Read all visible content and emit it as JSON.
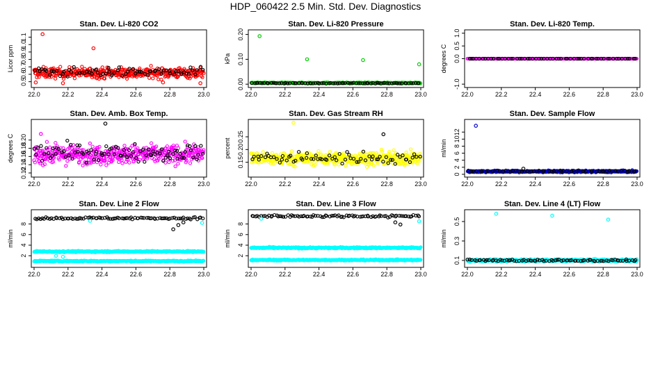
{
  "title": "HDP_060422  2.5 Min. Std. Dev. Diagnostics",
  "colors": {
    "red": "#ff0000",
    "black": "#000000",
    "green": "#00cc00",
    "magenta": "#ff00ff",
    "yellow": "#ffff00",
    "blue": "#0000cc",
    "cyan": "#00ffff"
  },
  "chart_data": [
    {
      "id": "co2",
      "type": "scatter",
      "title": "Stan. Dev. Li-820 CO2",
      "ylabel": "Licor ppm",
      "xlim": [
        22.0,
        23.0
      ],
      "xticks": [
        "22.0",
        "22.2",
        "22.4",
        "22.6",
        "22.8",
        "23.0"
      ],
      "ylim": [
        0.45,
        1.17
      ],
      "yticks": [
        "0.5",
        "0.6",
        "0.7",
        "0.8",
        "0.9",
        "1.0",
        "1.1"
      ],
      "series": [
        {
          "name": "main",
          "color": "red",
          "base": 0.62,
          "noise": 0.07,
          "count": 420
        },
        {
          "name": "ref",
          "color": "black",
          "base": 0.63,
          "noise": 0.06,
          "count": 70
        }
      ],
      "outliers": [
        {
          "x": 22.05,
          "y": 1.14,
          "color": "red"
        },
        {
          "x": 22.35,
          "y": 0.95,
          "color": "red"
        },
        {
          "x": 22.01,
          "y": 0.49,
          "color": "red"
        },
        {
          "x": 22.98,
          "y": 0.48,
          "color": "red"
        },
        {
          "x": 22.17,
          "y": 0.48,
          "color": "red"
        },
        {
          "x": 22.76,
          "y": 0.49,
          "color": "red"
        }
      ]
    },
    {
      "id": "pressure",
      "type": "scatter",
      "title": "Stan. Dev. Li-820 Pressure",
      "ylabel": "kPa",
      "xlim": [
        22.0,
        23.0
      ],
      "xticks": [
        "22.0",
        "22.2",
        "22.4",
        "22.6",
        "22.8",
        "23.0"
      ],
      "ylim": [
        -0.005,
        0.21
      ],
      "yticks": [
        "0.00",
        "0.10",
        "0.20"
      ],
      "series": [
        {
          "name": "main",
          "color": "green",
          "base": 0.005,
          "noise": 0.002,
          "count": 300
        },
        {
          "name": "ref",
          "color": "black",
          "base": 0.004,
          "noise": 0.0015,
          "count": 80
        }
      ],
      "outliers": [
        {
          "x": 22.05,
          "y": 0.193,
          "color": "green"
        },
        {
          "x": 22.33,
          "y": 0.1,
          "color": "green"
        },
        {
          "x": 22.66,
          "y": 0.097,
          "color": "green"
        },
        {
          "x": 22.99,
          "y": 0.08,
          "color": "green"
        }
      ]
    },
    {
      "id": "temp",
      "type": "scatter",
      "title": "Stan. Dev. Li-820 Temp.",
      "ylabel": "degrees C",
      "xlim": [
        22.0,
        23.0
      ],
      "xticks": [
        "22.0",
        "22.2",
        "22.4",
        "22.6",
        "22.8",
        "23.0"
      ],
      "ylim": [
        -1.05,
        1.05
      ],
      "yticks": [
        "-1.0",
        "0.0",
        "0.5",
        "1.0"
      ],
      "series": [
        {
          "name": "main",
          "color": "magenta",
          "base": 0.0,
          "noise": 0.0,
          "count": 240
        },
        {
          "name": "ref",
          "color": "black",
          "base": 0.0,
          "noise": 0.0,
          "count": 60
        }
      ],
      "outliers": []
    },
    {
      "id": "box",
      "type": "scatter",
      "title": "Stan. Dev. Amb. Box Temp.",
      "ylabel": "degrees C",
      "xlim": [
        22.0,
        23.0
      ],
      "xticks": [
        "22.0",
        "22.2",
        "22.4",
        "22.6",
        "22.8",
        "23.0"
      ],
      "ylim": [
        0.115,
        0.245
      ],
      "yticks": [
        "0.12",
        "0.14",
        "0.16",
        "0.18",
        "0.20"
      ],
      "series": [
        {
          "name": "main",
          "color": "magenta",
          "base": 0.165,
          "noise": 0.022,
          "count": 460
        },
        {
          "name": "ref",
          "color": "black",
          "base": 0.17,
          "noise": 0.02,
          "count": 90
        }
      ],
      "outliers": [
        {
          "x": 22.42,
          "y": 0.24,
          "color": "black"
        },
        {
          "x": 22.04,
          "y": 0.215,
          "color": "magenta"
        }
      ]
    },
    {
      "id": "rh",
      "type": "scatter",
      "title": "Stan. Dev. Gas Stream RH",
      "ylabel": "percent",
      "xlim": [
        22.0,
        23.0
      ],
      "xticks": [
        "22.0",
        "22.2",
        "22.4",
        "22.6",
        "22.8",
        "23.0"
      ],
      "ylim": [
        0.1,
        0.31
      ],
      "yticks": [
        "0.15",
        "0.20",
        "0.25"
      ],
      "series": [
        {
          "name": "main",
          "color": "yellow",
          "base": 0.165,
          "noise": 0.025,
          "count": 460
        },
        {
          "name": "ref",
          "color": "black",
          "base": 0.168,
          "noise": 0.022,
          "count": 70
        }
      ],
      "outliers": [
        {
          "x": 22.25,
          "y": 0.305,
          "color": "yellow"
        },
        {
          "x": 22.78,
          "y": 0.26,
          "color": "black"
        }
      ]
    },
    {
      "id": "sflow",
      "type": "scatter",
      "title": "Stan. Dev. Sample Flow",
      "ylabel": "ml/min",
      "xlim": [
        22.0,
        23.0
      ],
      "xticks": [
        "22.0",
        "22.2",
        "22.4",
        "22.6",
        "22.8",
        "23.0"
      ],
      "ylim": [
        -0.2,
        15
      ],
      "yticks": [
        "0",
        "2",
        "4",
        "6",
        "8",
        "10",
        "12"
      ],
      "series": [
        {
          "name": "main",
          "color": "blue",
          "base": 0.8,
          "noise": 0.25,
          "count": 380
        },
        {
          "name": "ref",
          "color": "black",
          "base": 0.9,
          "noise": 0.2,
          "count": 60
        }
      ],
      "outliers": [
        {
          "x": 22.05,
          "y": 13.8,
          "color": "blue"
        },
        {
          "x": 22.33,
          "y": 1.6,
          "color": "black"
        }
      ]
    },
    {
      "id": "l2",
      "type": "scatter",
      "title": "Stan. Dev. Line 2 Flow",
      "ylabel": "ml/min",
      "xlim": [
        22.0,
        23.0
      ],
      "xticks": [
        "22.0",
        "22.2",
        "22.4",
        "22.6",
        "22.8",
        "23.0"
      ],
      "ylim": [
        0.2,
        10.3
      ],
      "yticks": [
        "2",
        "4",
        "6",
        "8"
      ],
      "series": [
        {
          "name": "band-upper",
          "color": "cyan",
          "base": 2.8,
          "noise": 0.12,
          "count": 380
        },
        {
          "name": "band-lower",
          "color": "cyan",
          "base": 1.0,
          "noise": 0.1,
          "count": 380
        },
        {
          "name": "ref",
          "color": "black",
          "base": 9.1,
          "noise": 0.2,
          "count": 90
        }
      ],
      "outliers": [
        {
          "x": 22.82,
          "y": 7.0,
          "color": "black"
        },
        {
          "x": 22.85,
          "y": 7.8,
          "color": "black"
        },
        {
          "x": 22.88,
          "y": 8.3,
          "color": "black"
        },
        {
          "x": 22.13,
          "y": 2.0,
          "color": "cyan"
        },
        {
          "x": 22.17,
          "y": 1.8,
          "color": "cyan"
        },
        {
          "x": 22.33,
          "y": 8.6,
          "color": "cyan"
        },
        {
          "x": 22.99,
          "y": 8.2,
          "color": "cyan"
        }
      ]
    },
    {
      "id": "l3",
      "type": "scatter",
      "title": "Stan. Dev. Line 3 Flow",
      "ylabel": "ml/min",
      "xlim": [
        22.0,
        23.0
      ],
      "xticks": [
        "22.0",
        "22.2",
        "22.4",
        "22.6",
        "22.8",
        "23.0"
      ],
      "ylim": [
        0.2,
        10.3
      ],
      "yticks": [
        "2",
        "4",
        "6",
        "8"
      ],
      "series": [
        {
          "name": "band-upper",
          "color": "cyan",
          "base": 3.5,
          "noise": 0.13,
          "count": 380
        },
        {
          "name": "band-lower",
          "color": "cyan",
          "base": 1.2,
          "noise": 0.1,
          "count": 380
        },
        {
          "name": "ref",
          "color": "black",
          "base": 9.5,
          "noise": 0.22,
          "count": 90
        }
      ],
      "outliers": [
        {
          "x": 22.85,
          "y": 8.3,
          "color": "black"
        },
        {
          "x": 22.88,
          "y": 7.9,
          "color": "black"
        },
        {
          "x": 22.95,
          "y": 1.1,
          "color": "cyan"
        },
        {
          "x": 22.99,
          "y": 8.5,
          "color": "cyan"
        },
        {
          "x": 22.06,
          "y": 9.0,
          "color": "cyan"
        }
      ]
    },
    {
      "id": "l4",
      "type": "scatter",
      "title": "Stan. Dev. Line 4 (LT) Flow",
      "ylabel": "ml/min",
      "xlim": [
        22.0,
        23.0
      ],
      "xticks": [
        "22.0",
        "22.2",
        "22.4",
        "22.6",
        "22.8",
        "23.0"
      ],
      "ylim": [
        0.05,
        0.6
      ],
      "yticks": [
        "0.1",
        "0.3",
        "0.5"
      ],
      "series": [
        {
          "name": "main",
          "color": "cyan",
          "base": 0.1,
          "noise": 0.012,
          "count": 400
        },
        {
          "name": "ref",
          "color": "black",
          "base": 0.1,
          "noise": 0.01,
          "count": 80
        }
      ],
      "outliers": [
        {
          "x": 22.17,
          "y": 0.58,
          "color": "cyan"
        },
        {
          "x": 22.5,
          "y": 0.56,
          "color": "cyan"
        },
        {
          "x": 22.83,
          "y": 0.52,
          "color": "cyan"
        }
      ]
    }
  ]
}
